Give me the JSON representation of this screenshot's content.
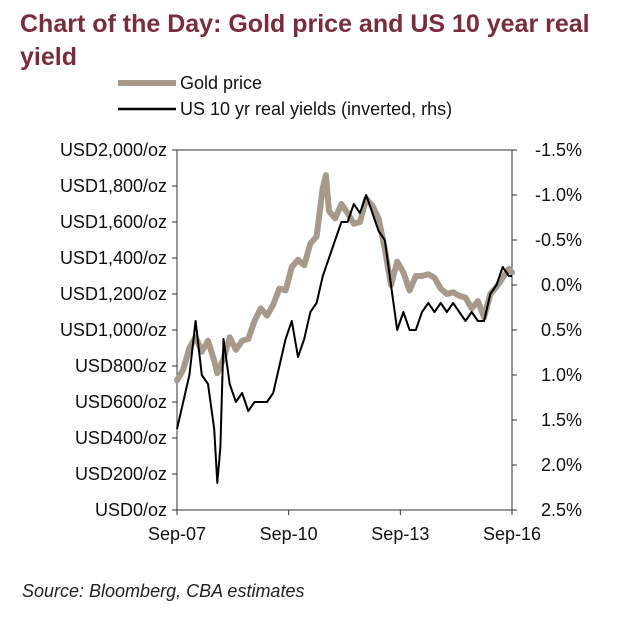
{
  "title": "Chart of the Day: Gold price and US 10 year real yield",
  "source": "Source: Bloomberg, CBA estimates",
  "colors": {
    "title": "#7b2c3b",
    "gold": "#a89a8a",
    "yield": "#000000",
    "axis": "#333333"
  },
  "chart_data": {
    "type": "line",
    "grid": false,
    "legend_position": "top-left",
    "left_axis": {
      "ticks": [
        "USD2,000/oz",
        "USD1,800/oz",
        "USD1,600/oz",
        "USD1,400/oz",
        "USD1,200/oz",
        "USD1,000/oz",
        "USD800/oz",
        "USD600/oz",
        "USD400/oz",
        "USD200/oz",
        "USD0/oz"
      ],
      "range": [
        0,
        2000
      ]
    },
    "right_axis": {
      "ticks": [
        "-1.5%",
        "-1.0%",
        "-0.5%",
        "0.0%",
        "0.5%",
        "1.0%",
        "1.5%",
        "2.0%",
        "2.5%"
      ],
      "range": [
        -1.5,
        2.5
      ],
      "inverted": true
    },
    "x_axis": {
      "ticks": [
        "Sep-07",
        "Sep-10",
        "Sep-13",
        "Sep-16"
      ],
      "range": [
        "2007-09",
        "2016-09"
      ]
    },
    "series": [
      {
        "name": "Gold price",
        "axis": "left",
        "x": [
          "2007-09",
          "2007-11",
          "2008-01",
          "2008-03",
          "2008-05",
          "2008-07",
          "2008-09",
          "2008-10",
          "2008-12",
          "2009-02",
          "2009-04",
          "2009-06",
          "2009-08",
          "2009-10",
          "2009-12",
          "2010-02",
          "2010-04",
          "2010-06",
          "2010-08",
          "2010-10",
          "2010-12",
          "2011-02",
          "2011-04",
          "2011-06",
          "2011-08",
          "2011-09",
          "2011-10",
          "2011-12",
          "2012-02",
          "2012-04",
          "2012-06",
          "2012-08",
          "2012-10",
          "2012-12",
          "2013-02",
          "2013-04",
          "2013-06",
          "2013-08",
          "2013-10",
          "2013-12",
          "2014-02",
          "2014-04",
          "2014-06",
          "2014-08",
          "2014-10",
          "2014-12",
          "2015-02",
          "2015-04",
          "2015-06",
          "2015-08",
          "2015-10",
          "2015-12",
          "2016-02",
          "2016-04",
          "2016-06",
          "2016-08",
          "2016-09"
        ],
        "values": [
          720,
          780,
          900,
          960,
          880,
          940,
          830,
          760,
          840,
          960,
          890,
          940,
          950,
          1050,
          1120,
          1080,
          1140,
          1230,
          1220,
          1350,
          1390,
          1360,
          1480,
          1520,
          1790,
          1860,
          1660,
          1620,
          1700,
          1650,
          1590,
          1600,
          1730,
          1690,
          1620,
          1450,
          1250,
          1380,
          1320,
          1220,
          1300,
          1300,
          1310,
          1290,
          1230,
          1200,
          1210,
          1190,
          1180,
          1120,
          1160,
          1070,
          1200,
          1240,
          1290,
          1340,
          1320
        ]
      },
      {
        "name": "US 10 yr real yields (inverted, rhs)",
        "axis": "right",
        "x": [
          "2007-09",
          "2007-11",
          "2008-01",
          "2008-03",
          "2008-05",
          "2008-07",
          "2008-09",
          "2008-10",
          "2008-11",
          "2008-12",
          "2009-02",
          "2009-04",
          "2009-06",
          "2009-08",
          "2009-10",
          "2009-12",
          "2010-02",
          "2010-04",
          "2010-06",
          "2010-08",
          "2010-10",
          "2010-12",
          "2011-02",
          "2011-04",
          "2011-06",
          "2011-08",
          "2011-10",
          "2011-12",
          "2012-02",
          "2012-04",
          "2012-06",
          "2012-08",
          "2012-10",
          "2012-12",
          "2013-02",
          "2013-04",
          "2013-06",
          "2013-08",
          "2013-10",
          "2013-12",
          "2014-02",
          "2014-04",
          "2014-06",
          "2014-08",
          "2014-10",
          "2014-12",
          "2015-02",
          "2015-04",
          "2015-06",
          "2015-08",
          "2015-10",
          "2015-12",
          "2016-02",
          "2016-04",
          "2016-06",
          "2016-08",
          "2016-09"
        ],
        "values": [
          1.6,
          1.3,
          1.0,
          0.4,
          1.0,
          1.1,
          1.6,
          2.2,
          1.8,
          0.6,
          1.1,
          1.3,
          1.2,
          1.4,
          1.3,
          1.3,
          1.3,
          1.2,
          0.9,
          0.6,
          0.4,
          0.8,
          0.6,
          0.3,
          0.2,
          -0.1,
          -0.3,
          -0.5,
          -0.7,
          -0.7,
          -0.9,
          -0.8,
          -1.0,
          -0.8,
          -0.6,
          -0.5,
          0.0,
          0.5,
          0.3,
          0.5,
          0.5,
          0.3,
          0.2,
          0.3,
          0.2,
          0.3,
          0.2,
          0.3,
          0.4,
          0.3,
          0.4,
          0.4,
          0.1,
          0.0,
          -0.2,
          -0.1,
          -0.1
        ]
      }
    ]
  }
}
